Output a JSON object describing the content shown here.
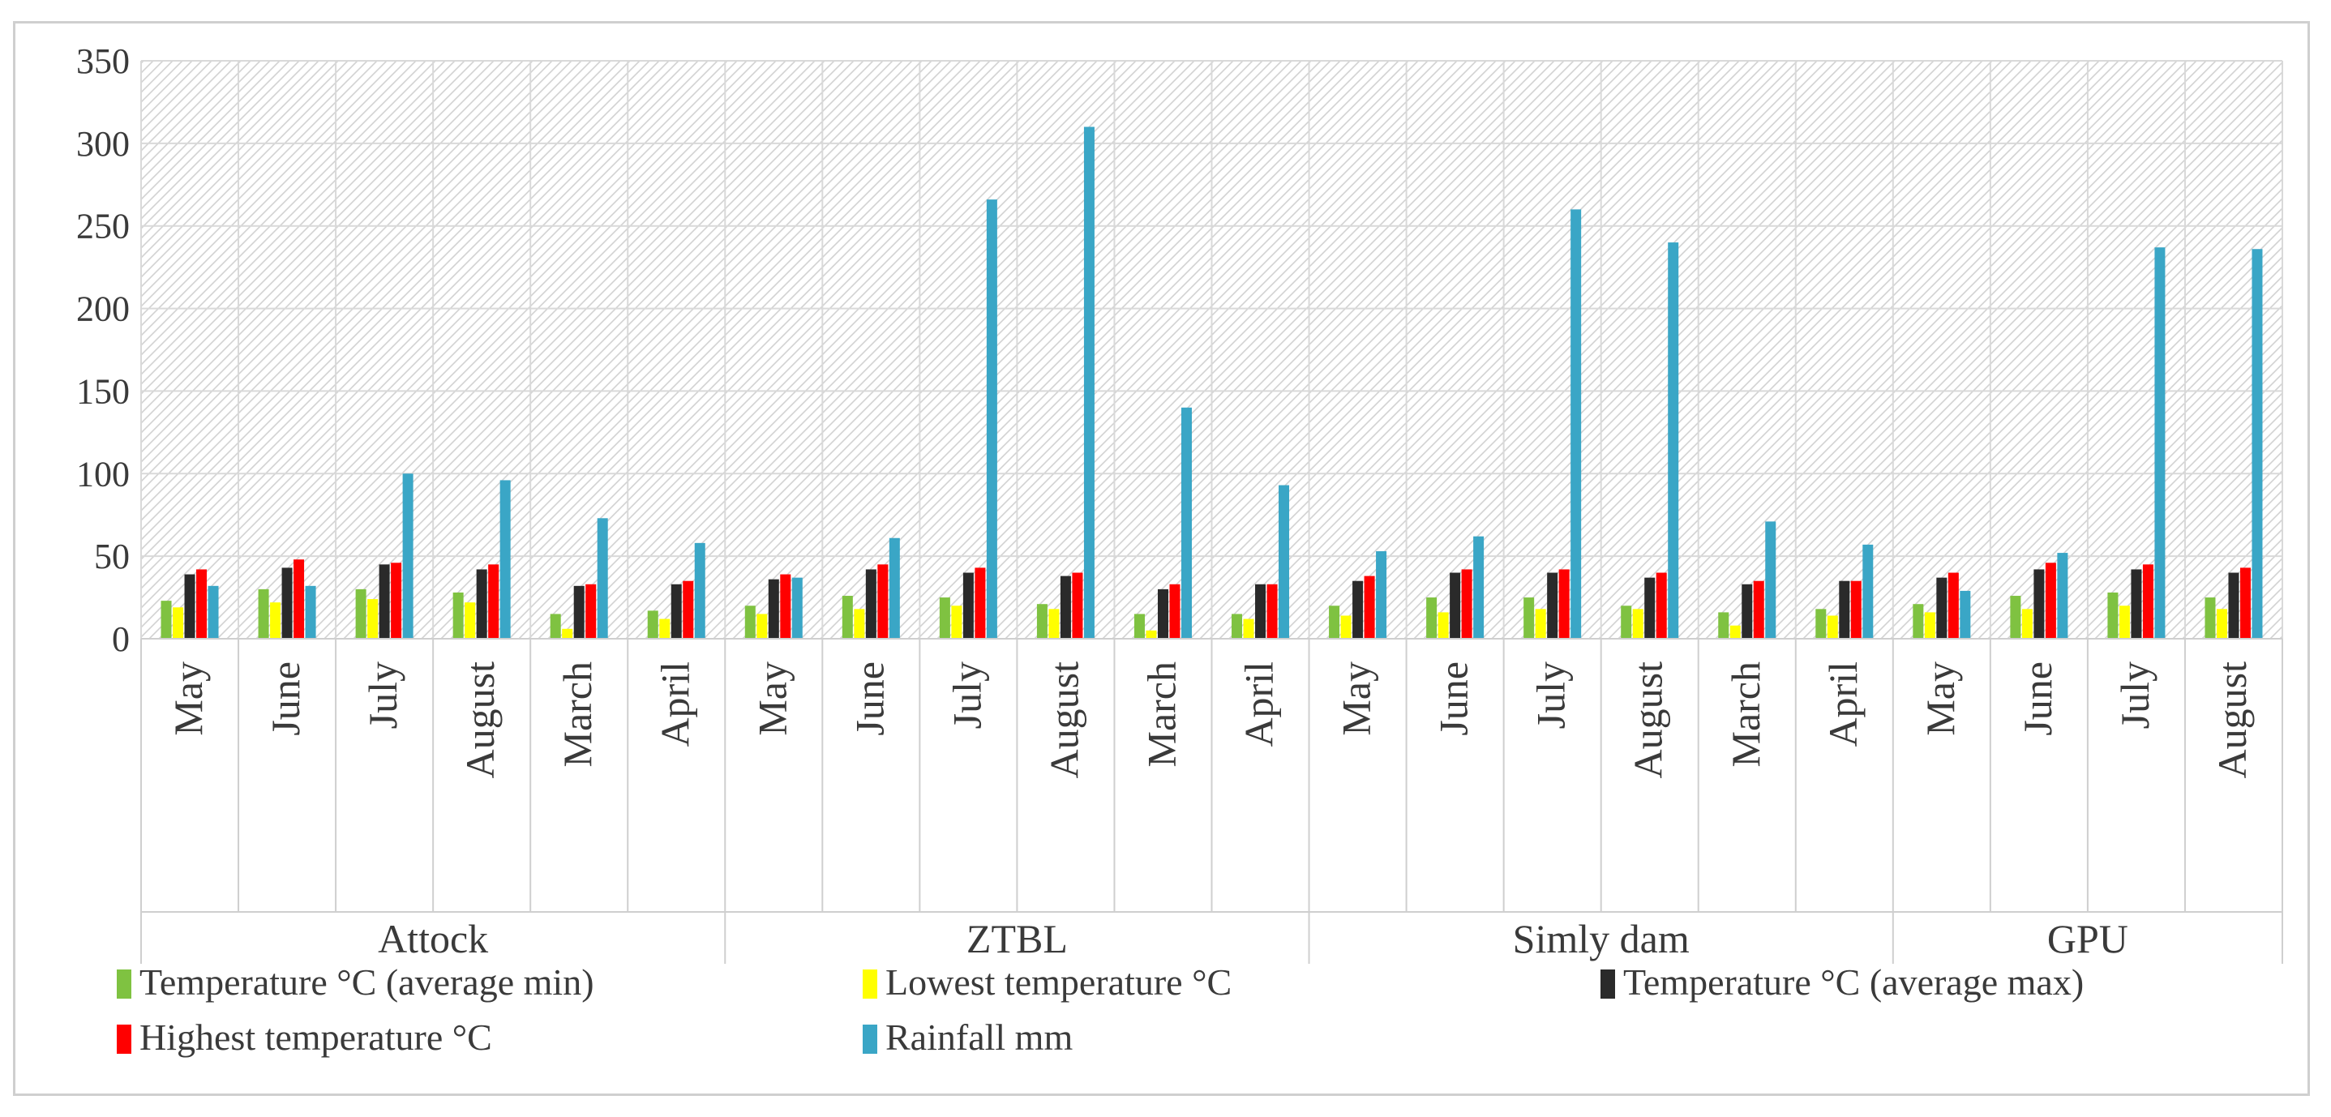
{
  "chart_data": {
    "type": "bar",
    "title": "",
    "xlabel": "",
    "ylabel": "",
    "ylim": [
      0,
      350
    ],
    "yticks": [
      0,
      50,
      100,
      150,
      200,
      250,
      300,
      350
    ],
    "grid": true,
    "legend_position": "bottom",
    "groups": [
      {
        "name": "Attock",
        "months": [
          "May",
          "June",
          "July",
          "August",
          "March",
          "April"
        ]
      },
      {
        "name": "ZTBL",
        "months": [
          "May",
          "June",
          "July",
          "August",
          "March",
          "April"
        ]
      },
      {
        "name": "Simly dam",
        "months": [
          "May",
          "June",
          "July",
          "August",
          "March",
          "April"
        ]
      },
      {
        "name": "GPU",
        "months": [
          "May",
          "June",
          "July",
          "August"
        ]
      }
    ],
    "series": [
      {
        "name": "Temperature °C (average min)",
        "color": "#7fc241",
        "values": [
          23,
          30,
          30,
          28,
          15,
          17,
          20,
          26,
          25,
          21,
          15,
          15,
          20,
          25,
          25,
          20,
          16,
          18,
          21,
          26,
          28,
          25
        ]
      },
      {
        "name": "Lowest temperature °C",
        "color": "#ffff00",
        "values": [
          19,
          22,
          24,
          22,
          6,
          12,
          15,
          18,
          20,
          18,
          5,
          12,
          14,
          16,
          18,
          18,
          8,
          14,
          16,
          18,
          20,
          18
        ]
      },
      {
        "name": "Temperature °C (average max)",
        "color": "#2a2a2a",
        "values": [
          39,
          43,
          45,
          42,
          32,
          33,
          36,
          42,
          40,
          38,
          30,
          33,
          35,
          40,
          40,
          37,
          33,
          35,
          37,
          42,
          42,
          40
        ]
      },
      {
        "name": "Highest temperature °C",
        "color": "#ff0000",
        "values": [
          42,
          48,
          46,
          45,
          33,
          35,
          39,
          45,
          43,
          40,
          33,
          33,
          38,
          42,
          42,
          40,
          35,
          35,
          40,
          46,
          45,
          43
        ]
      },
      {
        "name": "Rainfall mm",
        "color": "#3aa6c6",
        "values": [
          32,
          32,
          100,
          96,
          73,
          58,
          37,
          61,
          266,
          310,
          140,
          93,
          53,
          62,
          260,
          240,
          71,
          57,
          29,
          52,
          237,
          236
        ]
      }
    ]
  }
}
